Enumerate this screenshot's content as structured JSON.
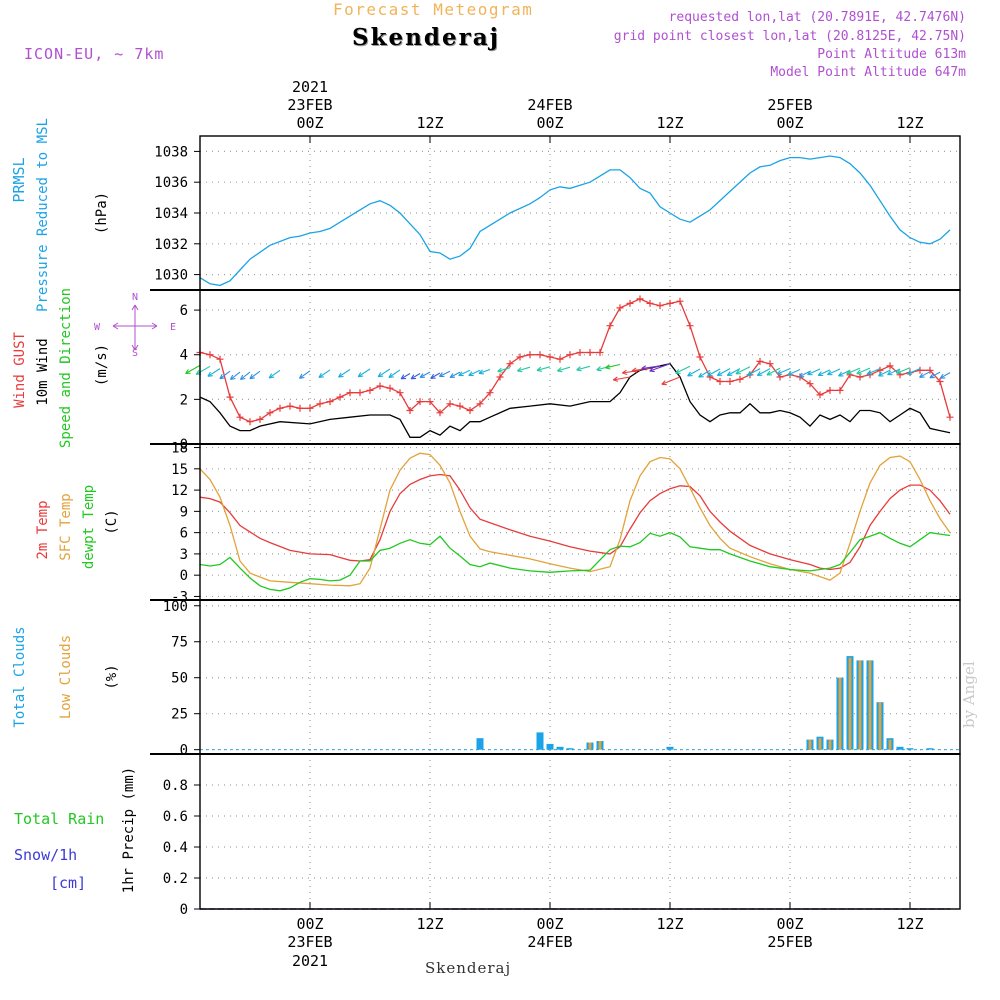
{
  "header": {
    "subtitle": "Forecast Meteogram",
    "station": "Skenderaj",
    "model": "ICON-EU, ~ 7km",
    "requested": "requested lon,lat (20.7891E, 42.7476N)",
    "gridpoint": "grid point closest lon,lat (20.8125E, 42.75N)",
    "point_alt": "Point Altitude 613m",
    "model_alt": "Model Point Altitude 647m",
    "footer_station": "Skenderaj",
    "credit": "by Angel"
  },
  "colors": {
    "cyan": "#1aa3e6",
    "red": "#e83b3b",
    "green": "#22c822",
    "orange": "#e3a23a",
    "purple": "#b050d0",
    "blue": "#3b3bd8",
    "black": "#000000"
  },
  "time_axis": {
    "top_year": "2021",
    "day_labels": [
      "23FEB",
      "24FEB",
      "25FEB"
    ],
    "hour_labels": [
      "00Z",
      "12Z",
      "00Z",
      "12Z",
      "00Z",
      "12Z"
    ],
    "bottom_year": "2021",
    "range_hours": [
      -11,
      65
    ]
  },
  "panels": {
    "pressure": {
      "labels": [
        "PRMSL",
        "Pressure Reduced to MSL"
      ],
      "unit": "(hPa)",
      "ticks": [
        "1030",
        "1032",
        "1034",
        "1036",
        "1038"
      ]
    },
    "wind": {
      "labels": [
        "Wind GUST",
        "10m Wind",
        "Speed and Direction"
      ],
      "unit": "(m/s)",
      "ticks": [
        "0",
        "2",
        "4",
        "6"
      ],
      "compass": {
        "n": "N",
        "w": "W",
        "e": "E",
        "s": "S"
      }
    },
    "temp": {
      "labels": [
        "2m Temp",
        "SFC Temp",
        "dewpt Temp"
      ],
      "unit": "(C)",
      "ticks": [
        "-3",
        "0",
        "3",
        "6",
        "9",
        "12",
        "15",
        "18"
      ]
    },
    "clouds": {
      "labels": [
        "Total Clouds",
        "Low Clouds"
      ],
      "unit": "(%)",
      "ticks": [
        "0",
        "25",
        "50",
        "75",
        "100"
      ]
    },
    "precip": {
      "labels": [
        "Total  Rain",
        "Snow/1h",
        "[cm]"
      ],
      "unit": "1hr Precip (mm)",
      "ticks": [
        "0",
        "0.2",
        "0.4",
        "0.6",
        "0.8"
      ]
    }
  },
  "chart_data": [
    {
      "type": "line",
      "title": "PRMSL Pressure Reduced to MSL",
      "ylabel": "hPa",
      "ylim": [
        1029,
        1039
      ],
      "series": [
        {
          "name": "PRMSL",
          "color": "cyan",
          "x": [
            -11,
            -10,
            -9,
            -8,
            -7,
            -6,
            -4,
            -2,
            -1,
            0,
            1,
            2,
            3,
            4,
            5,
            6,
            7,
            8,
            9,
            10,
            11,
            12,
            13,
            14,
            15,
            16,
            17,
            18,
            20,
            22,
            23,
            24,
            25,
            26,
            27,
            28,
            30,
            31,
            32,
            33,
            34,
            35,
            36,
            37,
            38,
            39,
            40,
            42,
            44,
            45,
            46,
            47,
            48,
            49,
            50,
            51,
            52,
            53,
            54,
            55,
            56,
            57,
            58,
            59,
            60,
            61,
            62,
            63,
            64
          ],
          "values": [
            1029.8,
            1029.4,
            1029.3,
            1029.6,
            1030.3,
            1031.0,
            1031.9,
            1032.4,
            1032.5,
            1032.7,
            1032.8,
            1033.0,
            1033.4,
            1033.8,
            1034.2,
            1034.6,
            1034.8,
            1034.5,
            1034.0,
            1033.3,
            1032.6,
            1031.5,
            1031.4,
            1031.0,
            1031.2,
            1031.7,
            1032.8,
            1033.2,
            1034.0,
            1034.6,
            1035.0,
            1035.5,
            1035.7,
            1035.6,
            1035.8,
            1036.0,
            1036.8,
            1036.8,
            1036.3,
            1035.6,
            1035.3,
            1034.4,
            1034.0,
            1033.6,
            1033.4,
            1033.8,
            1034.2,
            1035.4,
            1036.6,
            1037.0,
            1037.1,
            1037.4,
            1037.6,
            1037.6,
            1037.5,
            1037.6,
            1037.7,
            1037.6,
            1037.2,
            1036.6,
            1035.8,
            1034.8,
            1033.8,
            1032.9,
            1032.4,
            1032.1,
            1032.0,
            1032.3,
            1032.9
          ]
        }
      ]
    },
    {
      "type": "line",
      "title": "Wind GUST / 10m Wind Speed and Direction",
      "ylabel": "m/s",
      "ylim": [
        0,
        6.9
      ],
      "series": [
        {
          "name": "Wind GUST",
          "color": "red",
          "marker": "+",
          "x": [
            -11,
            -10,
            -9,
            -8,
            -7,
            -6,
            -5,
            -4,
            -3,
            -2,
            -1,
            0,
            1,
            2,
            3,
            4,
            5,
            6,
            7,
            8,
            9,
            10,
            11,
            12,
            13,
            14,
            15,
            16,
            17,
            18,
            19,
            20,
            21,
            22,
            23,
            24,
            25,
            26,
            27,
            28,
            29,
            30,
            31,
            32,
            33,
            34,
            35,
            36,
            37,
            38,
            39,
            40,
            41,
            42,
            43,
            44,
            45,
            46,
            47,
            48,
            49,
            50,
            51,
            52,
            53,
            54,
            55,
            56,
            57,
            58,
            59,
            60,
            61,
            62,
            63,
            64
          ],
          "values": [
            4.1,
            4.0,
            3.8,
            2.1,
            1.2,
            1.0,
            1.1,
            1.4,
            1.6,
            1.7,
            1.6,
            1.6,
            1.8,
            1.9,
            2.1,
            2.3,
            2.3,
            2.4,
            2.6,
            2.5,
            2.3,
            1.5,
            1.9,
            1.9,
            1.4,
            1.8,
            1.7,
            1.5,
            1.8,
            2.3,
            3.0,
            3.6,
            3.9,
            4.0,
            4.0,
            3.9,
            3.8,
            4.0,
            4.1,
            4.1,
            4.1,
            5.3,
            6.1,
            6.3,
            6.5,
            6.3,
            6.2,
            6.3,
            6.4,
            5.3,
            3.9,
            3.0,
            2.8,
            2.8,
            2.9,
            3.1,
            3.7,
            3.6,
            3.0,
            3.1,
            3.0,
            2.7,
            2.2,
            2.4,
            2.4,
            3.1,
            3.0,
            3.1,
            3.3,
            3.5,
            3.1,
            3.2,
            3.3,
            3.3,
            2.8,
            1.2
          ]
        },
        {
          "name": "10m Wind",
          "color": "black",
          "x": [
            -11,
            -10,
            -9,
            -8,
            -7,
            -6,
            -5,
            -3,
            0,
            2,
            4,
            6,
            8,
            9,
            10,
            11,
            12,
            13,
            14,
            15,
            16,
            17,
            18,
            20,
            22,
            24,
            26,
            28,
            30,
            31,
            32,
            33,
            34,
            35,
            36,
            37,
            38,
            39,
            40,
            41,
            42,
            43,
            44,
            45,
            46,
            47,
            48,
            49,
            50,
            51,
            52,
            53,
            54,
            55,
            56,
            57,
            58,
            59,
            60,
            61,
            62,
            63,
            64
          ],
          "values": [
            2.1,
            1.9,
            1.4,
            0.8,
            0.6,
            0.6,
            0.8,
            1.0,
            0.9,
            1.1,
            1.2,
            1.3,
            1.3,
            1.1,
            0.3,
            0.3,
            0.6,
            0.4,
            0.8,
            0.6,
            1.0,
            1.0,
            1.2,
            1.6,
            1.7,
            1.8,
            1.7,
            1.9,
            1.9,
            2.3,
            3.0,
            3.3,
            3.4,
            3.5,
            3.6,
            3.0,
            1.9,
            1.3,
            1.0,
            1.3,
            1.4,
            1.4,
            1.8,
            1.4,
            1.4,
            1.5,
            1.4,
            1.2,
            0.8,
            1.3,
            1.1,
            1.3,
            1.0,
            1.5,
            1.5,
            1.4,
            1.0,
            1.3,
            1.6,
            1.4,
            0.7,
            0.6,
            0.5
          ]
        }
      ]
    },
    {
      "type": "line",
      "title": "2m Temp / SFC Temp / dewpt Temp",
      "ylabel": "C",
      "ylim": [
        -3.5,
        18.5
      ],
      "series": [
        {
          "name": "2m Temp",
          "color": "red",
          "x": [
            -11,
            -10,
            -9,
            -8,
            -7,
            -6,
            -5,
            -4,
            -2,
            0,
            2,
            3,
            4,
            5,
            6,
            7,
            8,
            9,
            10,
            11,
            12,
            13,
            14,
            15,
            16,
            17,
            18,
            20,
            22,
            24,
            26,
            28,
            30,
            31,
            32,
            33,
            34,
            35,
            36,
            37,
            38,
            39,
            40,
            41,
            42,
            44,
            46,
            48,
            50,
            51,
            52,
            53,
            54,
            55,
            56,
            57,
            58,
            59,
            60,
            61,
            62,
            63,
            64
          ],
          "values": [
            11.0,
            10.8,
            10.3,
            8.8,
            7.0,
            6.1,
            5.2,
            4.6,
            3.5,
            3.0,
            2.9,
            2.5,
            2.1,
            2.0,
            2.2,
            5.0,
            9.0,
            11.5,
            12.8,
            13.5,
            14.0,
            14.2,
            14.0,
            12.0,
            9.5,
            7.9,
            7.4,
            6.4,
            5.5,
            4.8,
            4.0,
            3.4,
            3.0,
            4.0,
            6.5,
            8.8,
            10.5,
            11.5,
            12.2,
            12.6,
            12.5,
            11.2,
            9.0,
            7.5,
            6.2,
            4.2,
            3.0,
            2.2,
            1.5,
            1.0,
            0.8,
            1.0,
            1.8,
            4.0,
            7.0,
            9.0,
            10.8,
            12.0,
            12.7,
            12.7,
            12.0,
            10.5,
            8.6
          ]
        },
        {
          "name": "SFC Temp",
          "color": "orange",
          "x": [
            -11,
            -10,
            -9,
            -8,
            -7,
            -6,
            -4,
            -2,
            0,
            2,
            4,
            5,
            6,
            7,
            8,
            9,
            10,
            11,
            12,
            13,
            14,
            15,
            16,
            17,
            18,
            20,
            22,
            24,
            26,
            28,
            30,
            31,
            32,
            33,
            34,
            35,
            36,
            37,
            38,
            39,
            40,
            41,
            42,
            44,
            46,
            48,
            50,
            52,
            53,
            54,
            55,
            56,
            57,
            58,
            59,
            60,
            61,
            62,
            63,
            64
          ],
          "values": [
            15.0,
            13.5,
            11.0,
            7.0,
            2.0,
            0.3,
            -0.8,
            -1.0,
            -1.2,
            -1.4,
            -1.5,
            -1.2,
            1.0,
            6.5,
            12.0,
            14.8,
            16.5,
            17.2,
            17.0,
            15.5,
            13.0,
            9.0,
            5.5,
            3.7,
            3.3,
            2.8,
            2.3,
            1.6,
            1.0,
            0.5,
            1.2,
            5.0,
            10.5,
            14.0,
            16.0,
            16.6,
            16.4,
            15.0,
            12.3,
            9.5,
            7.0,
            5.2,
            3.8,
            2.6,
            1.6,
            0.8,
            0.3,
            -0.7,
            0.3,
            4.5,
            9.0,
            13.0,
            15.5,
            16.6,
            16.8,
            16.0,
            13.5,
            10.5,
            8.0,
            6.0
          ]
        },
        {
          "name": "dewpt Temp",
          "color": "green",
          "x": [
            -11,
            -10,
            -9,
            -8,
            -7,
            -6,
            -5,
            -4,
            -3,
            -2,
            -1,
            0,
            1,
            2,
            3,
            4,
            5,
            6,
            7,
            8,
            9,
            10,
            11,
            12,
            13,
            14,
            15,
            16,
            17,
            18,
            20,
            22,
            24,
            26,
            28,
            30,
            31,
            32,
            33,
            34,
            35,
            36,
            37,
            38,
            39,
            40,
            41,
            42,
            44,
            46,
            48,
            50,
            52,
            53,
            54,
            55,
            56,
            57,
            58,
            59,
            60,
            61,
            62,
            63,
            64
          ],
          "values": [
            1.5,
            1.3,
            1.5,
            2.5,
            1.0,
            -0.4,
            -1.5,
            -2.0,
            -2.2,
            -1.8,
            -1.0,
            -0.5,
            -0.6,
            -0.8,
            -0.7,
            0.0,
            2.0,
            2.0,
            3.5,
            3.8,
            4.5,
            5.0,
            4.5,
            4.3,
            5.5,
            3.8,
            2.7,
            1.5,
            1.2,
            1.7,
            1.0,
            0.6,
            0.4,
            0.6,
            0.7,
            3.6,
            4.1,
            4.0,
            4.6,
            5.9,
            5.5,
            6.0,
            5.4,
            4.0,
            3.8,
            3.6,
            3.6,
            3.0,
            2.0,
            1.2,
            0.8,
            0.6,
            1.0,
            1.5,
            3.2,
            5.0,
            5.5,
            6.0,
            5.2,
            4.5,
            4.0,
            5.0,
            6.0,
            5.8,
            5.6
          ]
        }
      ]
    },
    {
      "type": "bar",
      "title": "Total Clouds / Low Clouds",
      "ylabel": "%",
      "ylim": [
        -3,
        104
      ],
      "series": [
        {
          "name": "Total Clouds",
          "color": "cyan",
          "x": [
            17,
            23,
            24,
            25,
            26,
            28,
            29,
            36,
            50,
            51,
            52,
            53,
            54,
            55,
            56,
            57,
            58,
            59,
            60,
            62
          ],
          "values": [
            8,
            12,
            4,
            2,
            1,
            5,
            6,
            2,
            7,
            9,
            7,
            50,
            65,
            62,
            62,
            33,
            8,
            2,
            1,
            1
          ]
        },
        {
          "name": "Low Clouds",
          "color": "orange",
          "x": [
            28,
            29,
            50,
            51,
            52,
            53,
            54,
            55,
            56,
            57,
            58
          ],
          "values": [
            5,
            6,
            7,
            8,
            7,
            50,
            64,
            62,
            62,
            33,
            7
          ]
        }
      ]
    },
    {
      "type": "line",
      "title": "1hr Precip (mm)",
      "ylabel": "mm",
      "ylim": [
        0,
        1
      ],
      "series": [
        {
          "name": "Total Rain",
          "color": "green",
          "x": [
            -11,
            64
          ],
          "values": [
            0,
            0
          ]
        },
        {
          "name": "Snow/1h",
          "color": "blue",
          "x": [
            -11,
            64
          ],
          "values": [
            0,
            0
          ]
        }
      ]
    }
  ]
}
